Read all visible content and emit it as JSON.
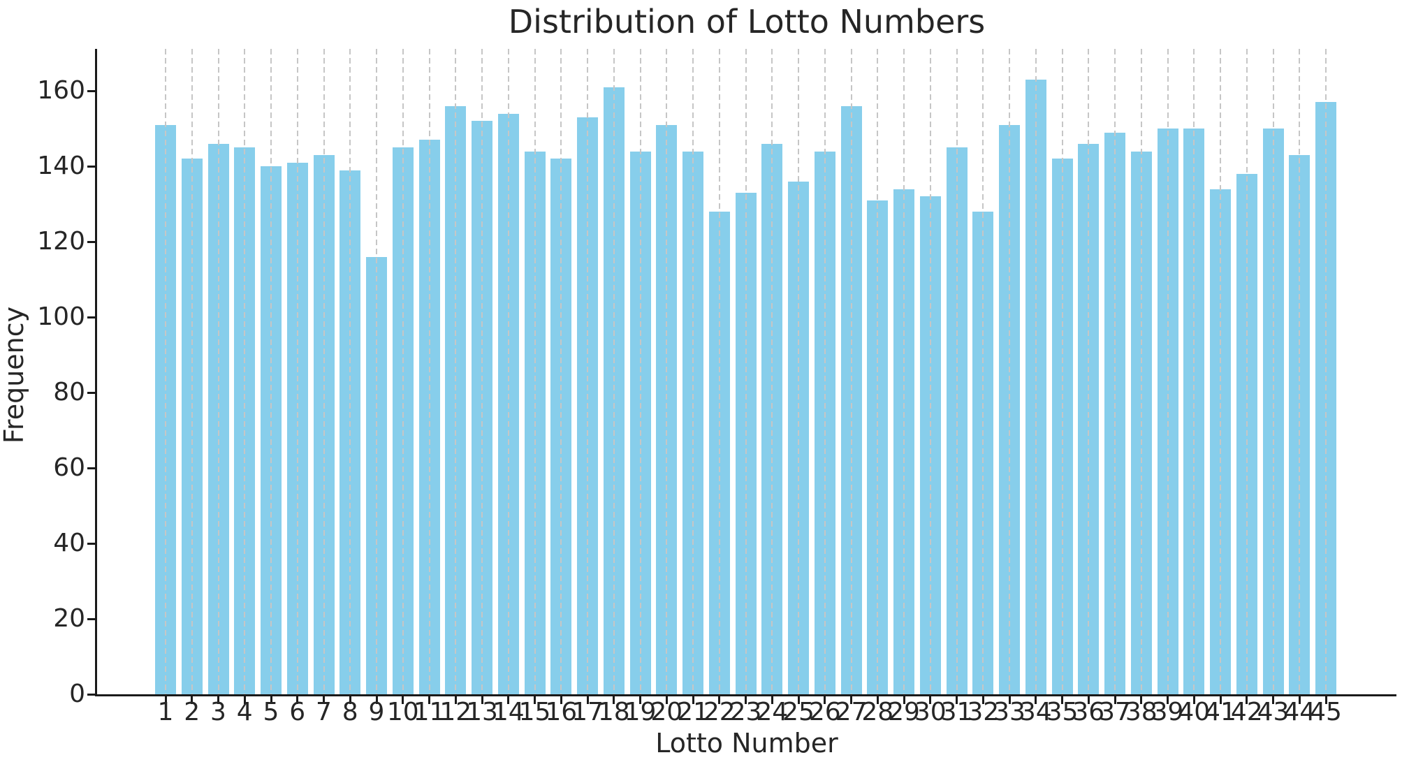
{
  "chart_data": {
    "type": "bar",
    "title": "Distribution of Lotto Numbers",
    "xlabel": "Lotto Number",
    "ylabel": "Frequency",
    "categories": [
      "1",
      "2",
      "3",
      "4",
      "5",
      "6",
      "7",
      "8",
      "9",
      "10",
      "11",
      "12",
      "13",
      "14",
      "15",
      "16",
      "17",
      "18",
      "19",
      "20",
      "21",
      "22",
      "23",
      "24",
      "25",
      "26",
      "27",
      "28",
      "29",
      "30",
      "31",
      "32",
      "33",
      "34",
      "35",
      "36",
      "37",
      "38",
      "39",
      "40",
      "41",
      "42",
      "43",
      "44",
      "45"
    ],
    "values": [
      151,
      142,
      146,
      145,
      140,
      141,
      143,
      139,
      116,
      145,
      147,
      156,
      152,
      154,
      144,
      142,
      153,
      161,
      144,
      151,
      144,
      128,
      133,
      146,
      136,
      144,
      156,
      131,
      134,
      132,
      145,
      128,
      151,
      163,
      142,
      146,
      149,
      144,
      150,
      150,
      134,
      138,
      150,
      143,
      157
    ],
    "y_ticks": [
      0,
      20,
      40,
      60,
      80,
      100,
      120,
      140,
      160
    ],
    "ylim": [
      0,
      171.15
    ],
    "grid": "vertical-dashed",
    "legend": "none",
    "colors": {
      "bar": "#87CEEB",
      "gridline": "#c6c6c6",
      "spine": "#1a1a1a",
      "text": "#262626",
      "background": "#ffffff"
    }
  }
}
